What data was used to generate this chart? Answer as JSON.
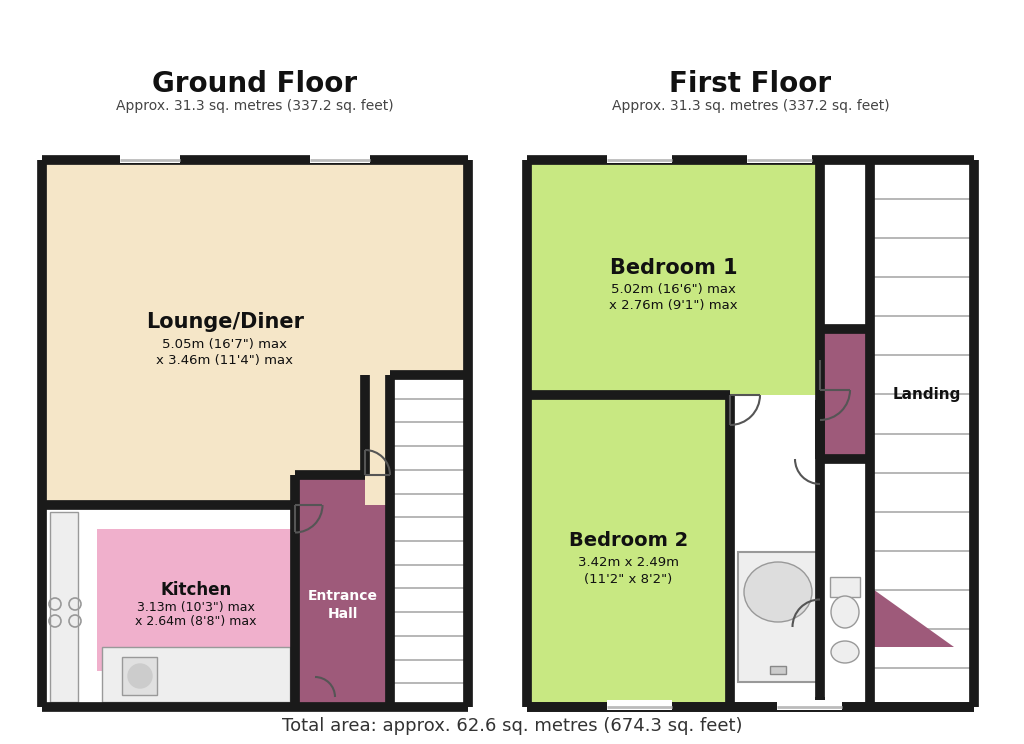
{
  "bg_color": "#ffffff",
  "wall_color": "#1a1a1a",
  "wall_lw": 7,
  "title_ground": "Ground Floor",
  "subtitle_ground": "Approx. 31.3 sq. metres (337.2 sq. feet)",
  "title_first": "First Floor",
  "subtitle_first": "Approx. 31.3 sq. metres (337.2 sq. feet)",
  "footer": "Total area: approx. 62.6 sq. metres (674.3 sq. feet)",
  "lounge_color": "#f5e6c8",
  "kitchen_color": "#f0b0cc",
  "entrance_color": "#9e5a7a",
  "bed1_color": "#c8e882",
  "bed2_color": "#c8e882",
  "landing_color": "#9e5a7a",
  "stair_line_color": "#aaaaaa",
  "wall_fill": "#f5f5f5",
  "white": "#ffffff",
  "fixture_color": "#dddddd",
  "fixture_edge": "#999999"
}
